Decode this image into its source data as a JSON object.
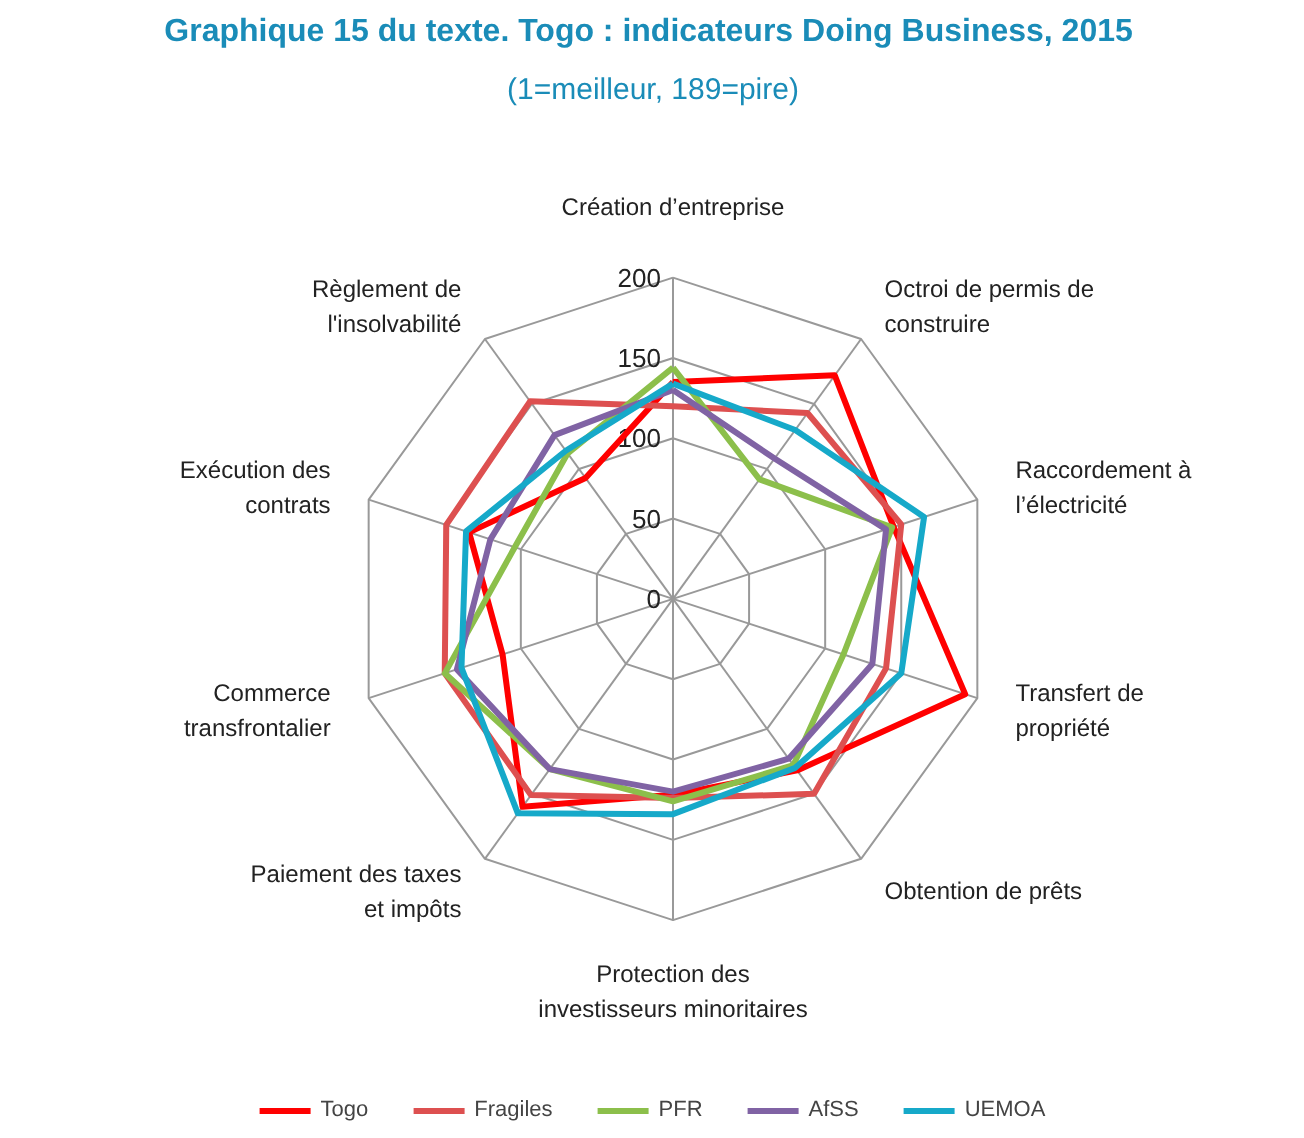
{
  "chart_data": {
    "type": "radar",
    "title": "Graphique 15 du texte. Togo : indicateurs  Doing Business, 2015",
    "subtitle": "(1=meilleur, 189=pire)",
    "categories": [
      "Création d’entreprise",
      "Octroi de permis de\nconstruire",
      "Raccordement à\nl’électricité",
      "Transfert de\npropriété",
      "Obtention de prêts",
      "Protection des\ninvestisseurs minoritaires",
      "Paiement des taxes\net impôts",
      "Commerce\ntransfrontalier",
      "Exécution des\ncontrats",
      "Règlement de\nl'insolvabilité"
    ],
    "series": [
      {
        "name": "Togo",
        "color": "#ff0000",
        "values": [
          135,
          172,
          145,
          192,
          132,
          122,
          160,
          112,
          134,
          93
        ]
      },
      {
        "name": "Fragiles",
        "color": "#dd5050",
        "values": [
          120,
          143,
          150,
          140,
          150,
          124,
          151,
          150,
          149,
          152
        ]
      },
      {
        "name": "PFR",
        "color": "#8cbf4b",
        "values": [
          144,
          92,
          144,
          112,
          128,
          126,
          131,
          150,
          104,
          112
        ]
      },
      {
        "name": "AfSS",
        "color": "#8063a4",
        "values": [
          130,
          108,
          140,
          131,
          123,
          120,
          131,
          142,
          120,
          126
        ]
      },
      {
        "name": "UEMOA",
        "color": "#16a9c9",
        "values": [
          134,
          130,
          165,
          150,
          130,
          134,
          165,
          139,
          136,
          114
        ]
      }
    ],
    "ylim": [
      0,
      200
    ],
    "yticks": [
      0,
      50,
      100,
      150,
      200
    ],
    "grid": true,
    "legend": "bottom",
    "line_style": "solid",
    "marker": "none"
  }
}
